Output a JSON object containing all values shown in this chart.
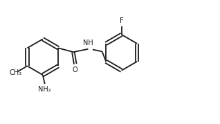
{
  "background": "#ffffff",
  "line_color": "#1a1a1a",
  "line_width": 1.3,
  "font_size": 7.0,
  "figsize": [
    3.18,
    1.79
  ],
  "dpi": 100,
  "xlim": [
    -1.9,
    2.5
  ],
  "ylim": [
    -0.85,
    0.85
  ]
}
